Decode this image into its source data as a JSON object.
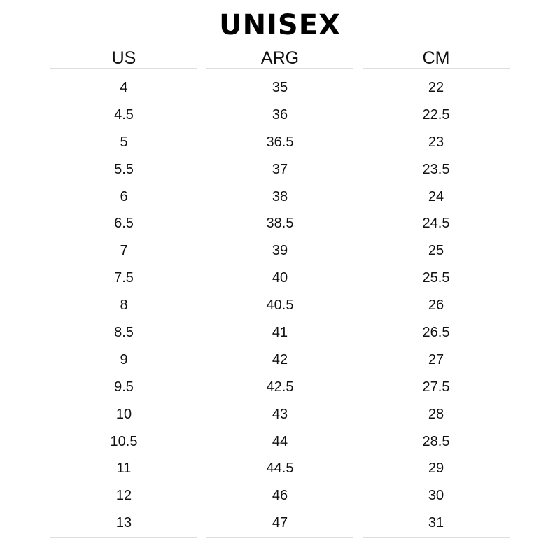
{
  "title": "UNISEX",
  "columns": [
    {
      "header": "US",
      "values": [
        "4",
        "4.5",
        "5",
        "5.5",
        "6",
        "6.5",
        "7",
        "7.5",
        "8",
        "8.5",
        "9",
        "9.5",
        "10",
        "10.5",
        "11",
        "12",
        "13"
      ]
    },
    {
      "header": "ARG",
      "values": [
        "35",
        "36",
        "36.5",
        "37",
        "38",
        "38.5",
        "39",
        "40",
        "40.5",
        "41",
        "42",
        "42.5",
        "43",
        "44",
        "44.5",
        "46",
        "47"
      ]
    },
    {
      "header": "CM",
      "values": [
        "22",
        "22.5",
        "23",
        "23.5",
        "24",
        "24.5",
        "25",
        "25.5",
        "26",
        "26.5",
        "27",
        "27.5",
        "28",
        "28.5",
        "29",
        "30",
        "31"
      ]
    }
  ]
}
